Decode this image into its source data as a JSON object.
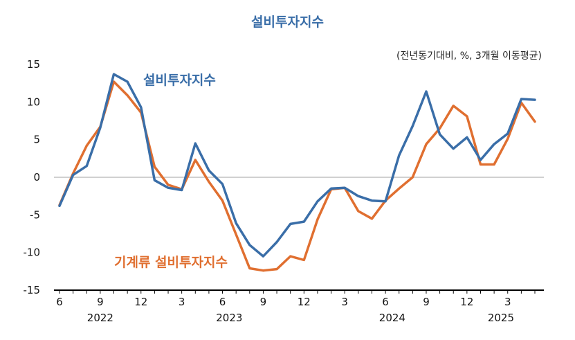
{
  "chart_data": {
    "type": "line",
    "title": "설비투자지수",
    "unit_note": "(전년동기대비, %, 3개월 이동평균)",
    "ylim": [
      -15,
      15
    ],
    "y_ticks": [
      "15",
      "10",
      "5",
      "0",
      "-5",
      "-10",
      "-15"
    ],
    "x_tick_labels": [
      {
        "i": 0,
        "label": "6"
      },
      {
        "i": 3,
        "label": "9"
      },
      {
        "i": 6,
        "label": "12"
      },
      {
        "i": 9,
        "label": "3"
      },
      {
        "i": 12,
        "label": "6"
      },
      {
        "i": 15,
        "label": "9"
      },
      {
        "i": 18,
        "label": "12"
      },
      {
        "i": 21,
        "label": "3"
      },
      {
        "i": 24,
        "label": "6"
      },
      {
        "i": 27,
        "label": "9"
      },
      {
        "i": 30,
        "label": "12"
      },
      {
        "i": 33,
        "label": "3"
      }
    ],
    "year_labels": [
      {
        "i": 3,
        "label": "2022"
      },
      {
        "i": 12.5,
        "label": "2023"
      },
      {
        "i": 24.5,
        "label": "2024"
      },
      {
        "i": 32.5,
        "label": "2025"
      }
    ],
    "grid": false,
    "series": [
      {
        "name": "설비투자지수",
        "color": "#3a6ea8",
        "values": [
          -3.8,
          0.3,
          1.5,
          6.6,
          13.7,
          12.7,
          9.3,
          -0.4,
          -1.4,
          -1.7,
          4.5,
          0.9,
          -0.9,
          -6.1,
          -9.0,
          -10.5,
          -8.6,
          -6.2,
          -5.9,
          -3.2,
          -1.5,
          -1.4,
          -2.5,
          -3.1,
          -3.2,
          2.9,
          6.8,
          11.4,
          5.7,
          3.8,
          5.3,
          2.3,
          4.4,
          5.8,
          10.4,
          10.3
        ]
      },
      {
        "name": "기계류 설비투자지수",
        "color": "#e06f30",
        "values": [
          -3.7,
          0.5,
          4.2,
          6.7,
          12.7,
          10.9,
          8.6,
          1.4,
          -1.0,
          -1.6,
          2.3,
          -0.6,
          -3.1,
          -7.6,
          -12.1,
          -12.4,
          -12.2,
          -10.5,
          -11.0,
          -5.6,
          -1.6,
          -1.4,
          -4.5,
          -5.5,
          -3.1,
          -1.5,
          0.0,
          4.4,
          6.5,
          9.5,
          8.1,
          1.7,
          1.7,
          5.1,
          9.9,
          7.4
        ]
      }
    ]
  }
}
